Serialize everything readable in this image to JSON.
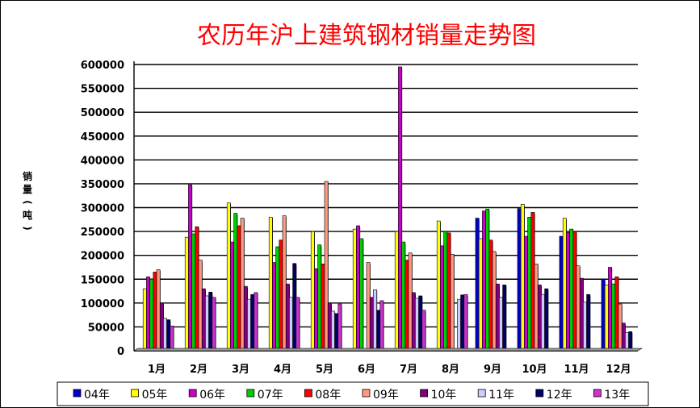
{
  "chart_data": {
    "type": "bar",
    "title": "农历年沪上建筑钢材销量走势图",
    "ylabel": "销 量 (吨)",
    "xlabel": "",
    "ylim": [
      0,
      600000
    ],
    "yticks": [
      "0",
      "50000",
      "100000",
      "150000",
      "200000",
      "250000",
      "300000",
      "350000",
      "400000",
      "450000",
      "500000",
      "550000",
      "600000"
    ],
    "categories": [
      "1月",
      "2月",
      "3月",
      "4月",
      "5月",
      "6月",
      "7月",
      "8月",
      "9月",
      "10月",
      "11月",
      "12月"
    ],
    "grid": true,
    "legend_position": "bottom",
    "series": [
      {
        "name": "04年",
        "color": "#0000cc",
        "values": [
          0,
          0,
          0,
          0,
          0,
          0,
          0,
          0,
          278000,
          298000,
          240000,
          150000
        ]
      },
      {
        "name": "05年",
        "color": "#ffff00",
        "values": [
          130000,
          238000,
          310000,
          280000,
          250000,
          255000,
          250000,
          272000,
          235000,
          307000,
          278000,
          138000
        ]
      },
      {
        "name": "06年",
        "color": "#cc00cc",
        "values": [
          155000,
          348000,
          228000,
          185000,
          172000,
          262000,
          595000,
          220000,
          293000,
          240000,
          248000,
          175000
        ]
      },
      {
        "name": "07年",
        "color": "#00cc00",
        "values": [
          150000,
          245000,
          288000,
          218000,
          222000,
          235000,
          228000,
          250000,
          297000,
          280000,
          255000,
          140000
        ]
      },
      {
        "name": "08年",
        "color": "#ff0000",
        "values": [
          165000,
          260000,
          262000,
          232000,
          182000,
          0,
          190000,
          247000,
          232000,
          290000,
          250000,
          155000
        ]
      },
      {
        "name": "09年",
        "color": "#ff9980",
        "values": [
          170000,
          190000,
          278000,
          283000,
          355000,
          185000,
          205000,
          202000,
          208000,
          182000,
          178000,
          98000
        ]
      },
      {
        "name": "10年",
        "color": "#800080",
        "values": [
          100000,
          130000,
          135000,
          140000,
          100000,
          112000,
          122000,
          0,
          140000,
          138000,
          152000,
          58000
        ]
      },
      {
        "name": "11年",
        "color": "#ccccff",
        "values": [
          68000,
          115000,
          108000,
          112000,
          83000,
          128000,
          110000,
          108000,
          112000,
          118000,
          102000,
          38000
        ]
      },
      {
        "name": "12年",
        "color": "#000066",
        "values": [
          65000,
          123000,
          118000,
          183000,
          78000,
          85000,
          115000,
          117000,
          138000,
          130000,
          118000,
          40000
        ]
      },
      {
        "name": "13年",
        "color": "#cc33cc",
        "values": [
          52000,
          112000,
          122000,
          112000,
          98000,
          105000,
          85000,
          118000,
          0,
          0,
          0,
          0
        ]
      }
    ]
  }
}
